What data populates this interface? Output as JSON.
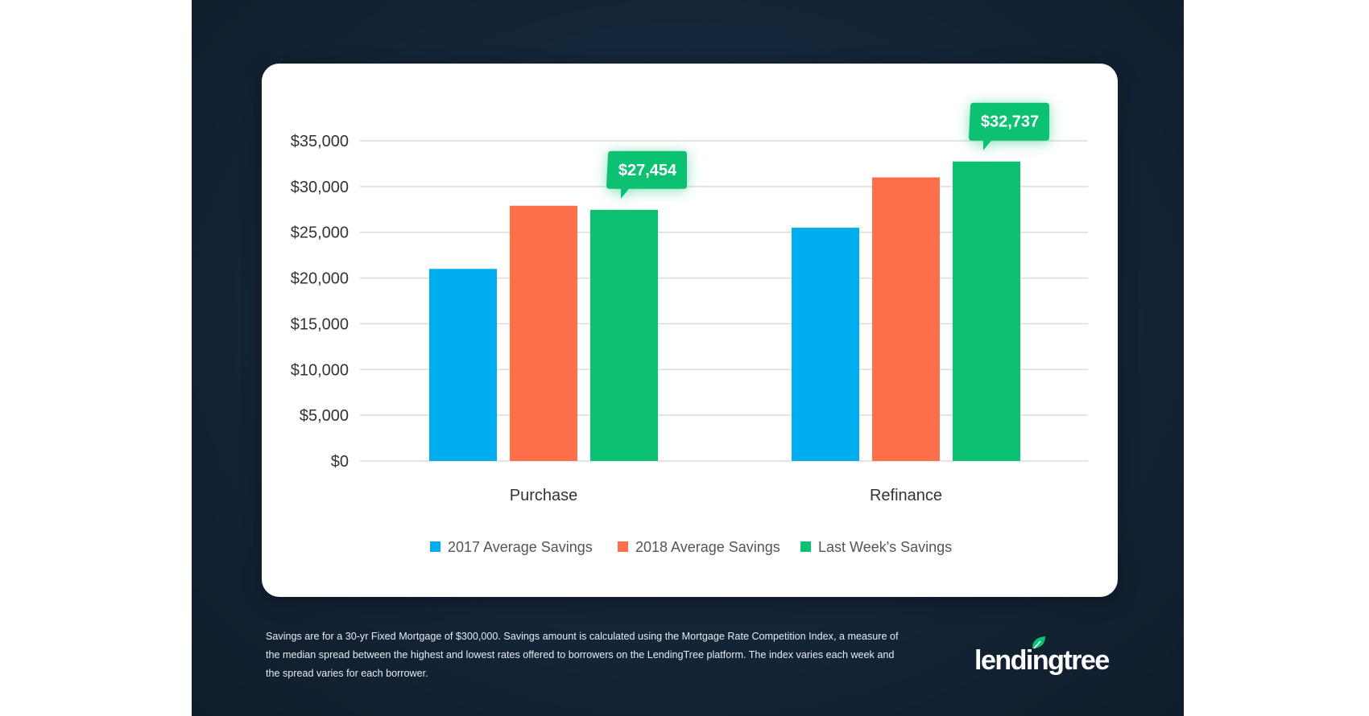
{
  "chart_data": {
    "type": "bar",
    "categories": [
      "Purchase",
      "Refinance"
    ],
    "series": [
      {
        "name": "2017 Average Savings",
        "color": "#00aeef",
        "values": [
          21000,
          25500
        ]
      },
      {
        "name": "2018 Average Savings",
        "color": "#ff6f4a",
        "values": [
          27900,
          31000
        ]
      },
      {
        "name": "Last Week's Savings",
        "color": "#0cc172",
        "values": [
          27454,
          32737
        ]
      }
    ],
    "callouts": [
      "$27,454",
      "$32,737"
    ],
    "yticks": [
      "$0",
      "$5,000",
      "$10,000",
      "$15,000",
      "$20,000",
      "$25,000",
      "$30,000",
      "$35,000"
    ],
    "ylim": [
      0,
      35000
    ],
    "grid": true,
    "legend": "bottom"
  },
  "footer": {
    "note": "Savings are for a 30-yr Fixed Mortgage of $300,000. Savings amount is calculated using the Mortgage Rate Competition Index, a measure of the median spread between the highest and lowest rates offered to borrowers on the LendingTree platform. The index varies each week and the spread varies for each borrower."
  },
  "logo": {
    "text": "lendingtree",
    "color": "#0cc172"
  }
}
